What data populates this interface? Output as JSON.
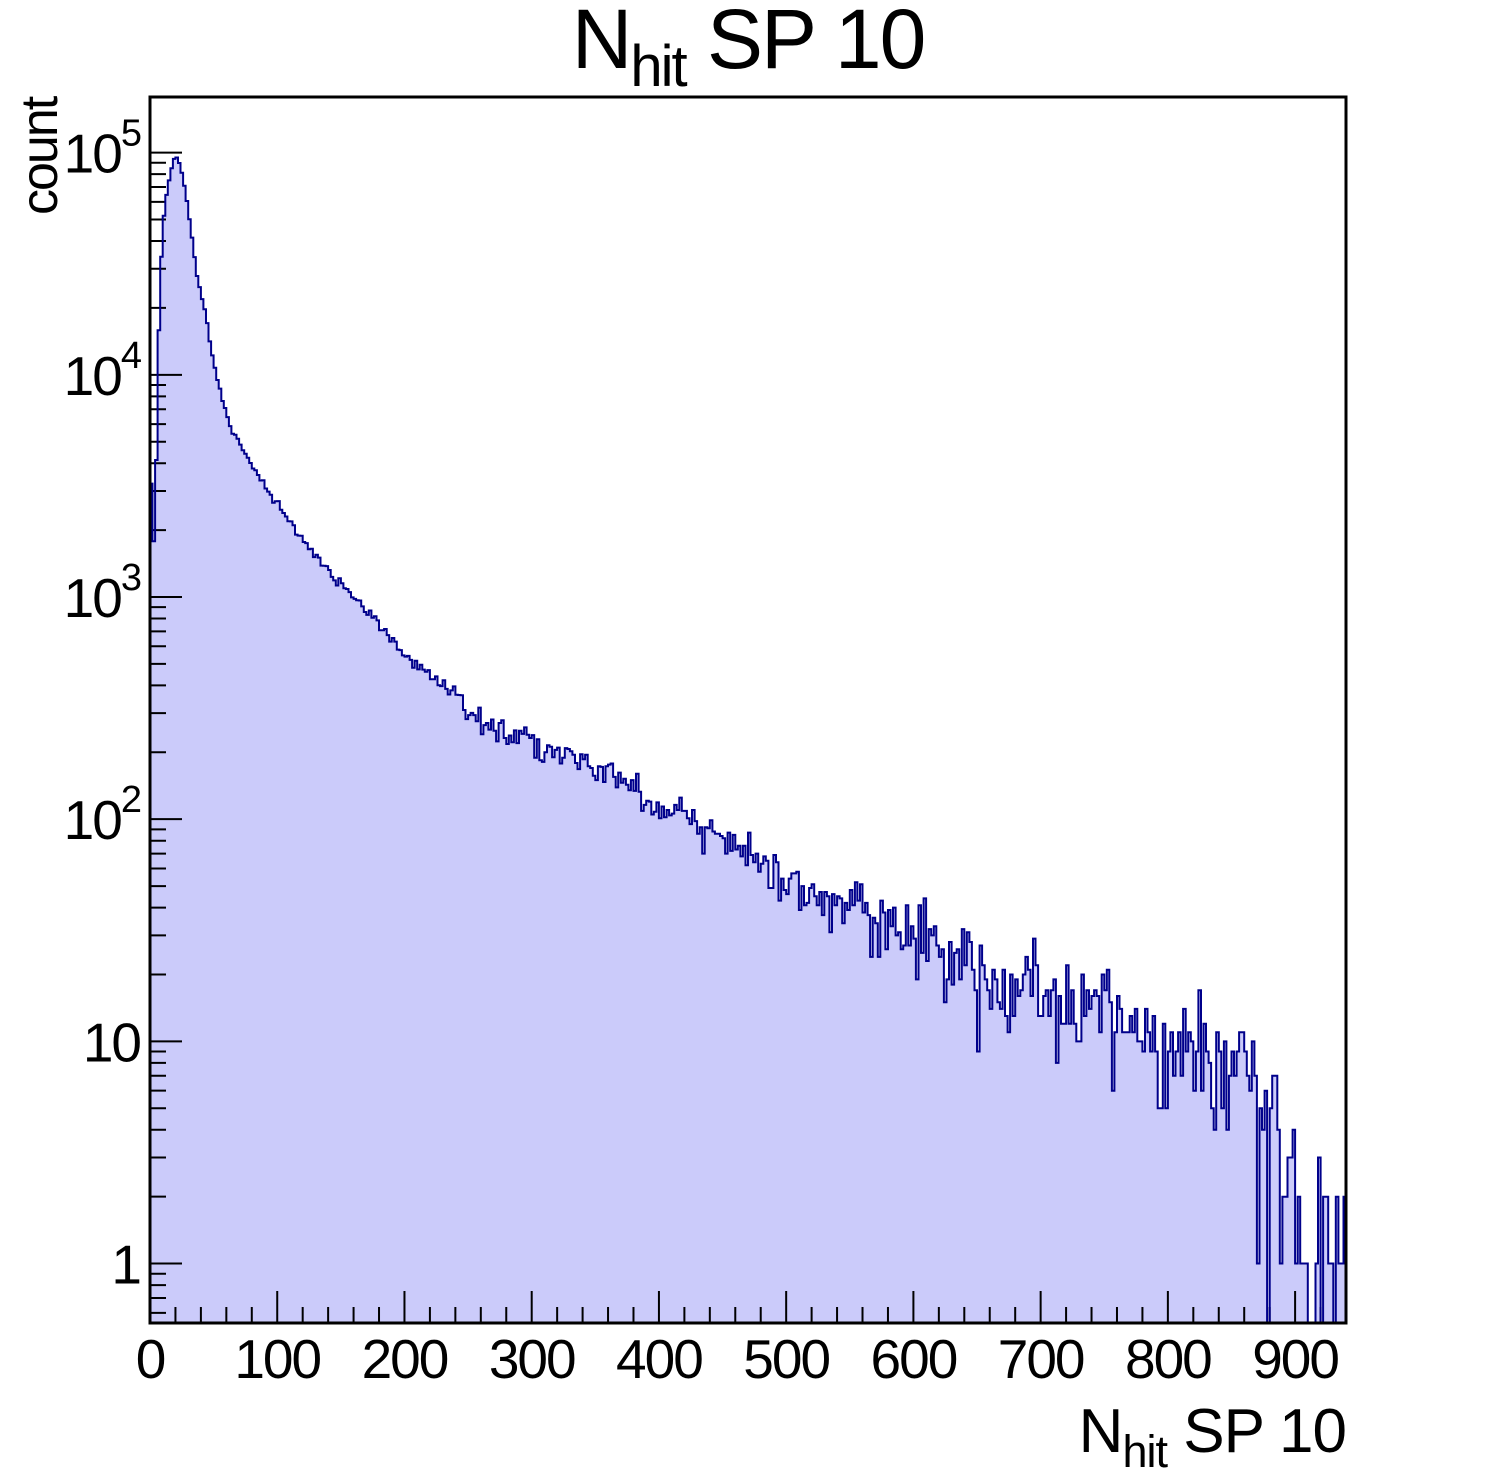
{
  "page": {
    "background": "#ffffff"
  },
  "chart_data": {
    "type": "bar",
    "subtype": "histogram-log-y",
    "title": "N_hit SP 10",
    "title_parts": {
      "prefix": "N",
      "sub": "hit",
      "suffix": " SP 10"
    },
    "xlabel": "N_hit SP 10",
    "xlabel_parts": {
      "prefix": "N",
      "sub": "hit",
      "suffix": " SP 10"
    },
    "ylabel": "count",
    "x_range": [
      0,
      940
    ],
    "bin_width": 2,
    "y_scale": "log",
    "ylim": [
      0.54,
      178000
    ],
    "x_major_ticks": [
      0,
      100,
      200,
      300,
      400,
      500,
      600,
      700,
      800,
      900
    ],
    "x_minor_tick_step": 20,
    "y_major_tick_exponents": [
      0,
      1,
      2,
      3,
      4,
      5
    ],
    "grid": false,
    "legend": false,
    "peak": {
      "x": 20,
      "count": 97000
    },
    "anchors_note": "Envelope of the distribution as (bin-center N, count) pairs read from the plot; bins are generated by log-linear interpolation between anchors with seeded Poisson fluctuations.",
    "anchors": [
      [
        0,
        3200
      ],
      [
        1,
        3200
      ],
      [
        2,
        1800
      ],
      [
        3,
        1800
      ],
      [
        4,
        2600
      ],
      [
        5,
        4200
      ],
      [
        6,
        7000
      ],
      [
        7,
        16000
      ],
      [
        8,
        26000
      ],
      [
        10,
        45000
      ],
      [
        12,
        60000
      ],
      [
        14,
        70000
      ],
      [
        16,
        80000
      ],
      [
        18,
        90000
      ],
      [
        20,
        97000
      ],
      [
        22,
        93000
      ],
      [
        24,
        87000
      ],
      [
        26,
        76000
      ],
      [
        28,
        66000
      ],
      [
        30,
        56000
      ],
      [
        32,
        45000
      ],
      [
        34,
        38000
      ],
      [
        37,
        28000
      ],
      [
        40,
        23000
      ],
      [
        44,
        19000
      ],
      [
        48,
        13000
      ],
      [
        52,
        10000
      ],
      [
        58,
        7300
      ],
      [
        65,
        5500
      ],
      [
        70,
        5000
      ],
      [
        76,
        4300
      ],
      [
        83,
        3700
      ],
      [
        90,
        3200
      ],
      [
        96,
        2800
      ],
      [
        103,
        2500
      ],
      [
        110,
        2200
      ],
      [
        116,
        1950
      ],
      [
        123,
        1750
      ],
      [
        130,
        1550
      ],
      [
        136,
        1400
      ],
      [
        143,
        1250
      ],
      [
        150,
        1150
      ],
      [
        160,
        1000
      ],
      [
        175,
        800
      ],
      [
        188,
        660
      ],
      [
        200,
        560
      ],
      [
        215,
        470
      ],
      [
        230,
        400
      ],
      [
        242,
        350
      ],
      [
        254,
        300
      ],
      [
        268,
        270
      ],
      [
        280,
        250
      ],
      [
        294,
        235
      ],
      [
        306,
        220
      ],
      [
        318,
        200
      ],
      [
        330,
        185
      ],
      [
        345,
        170
      ],
      [
        360,
        160
      ],
      [
        375,
        150
      ],
      [
        385,
        135
      ],
      [
        395,
        120
      ],
      [
        410,
        105
      ],
      [
        425,
        95
      ],
      [
        440,
        85
      ],
      [
        455,
        75
      ],
      [
        464,
        70
      ],
      [
        480,
        63
      ],
      [
        500,
        56
      ],
      [
        515,
        50
      ],
      [
        530,
        45
      ],
      [
        545,
        41
      ],
      [
        560,
        37
      ],
      [
        580,
        33
      ],
      [
        600,
        30
      ],
      [
        620,
        27
      ],
      [
        640,
        24
      ],
      [
        660,
        22
      ],
      [
        680,
        20
      ],
      [
        700,
        18
      ],
      [
        720,
        16
      ],
      [
        740,
        15
      ],
      [
        760,
        13
      ],
      [
        780,
        12
      ],
      [
        800,
        11
      ],
      [
        820,
        10
      ],
      [
        840,
        9
      ],
      [
        855,
        8
      ],
      [
        870,
        6
      ],
      [
        885,
        4
      ],
      [
        895,
        3
      ],
      [
        905,
        2
      ],
      [
        912,
        1.4
      ],
      [
        920,
        1.0
      ],
      [
        930,
        1.1
      ],
      [
        940,
        1.3
      ]
    ],
    "noise_seed": 1337,
    "colors": {
      "fill": "#cbcbfa",
      "line": "#00008b",
      "frame": "#000000",
      "text": "#000000"
    }
  }
}
